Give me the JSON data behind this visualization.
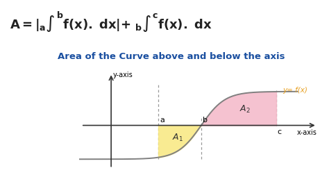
{
  "background_color": "#ffffff",
  "subtitle": "Area of the Curve above and below the axis",
  "subtitle_color": "#1a4fa0",
  "subtitle_fontsize": 9.5,
  "curve_color": "#808080",
  "area1_color": "#f9e87f",
  "area1_alpha": 0.85,
  "area2_color": "#f4b8c8",
  "area2_alpha": 0.85,
  "xaxis_label": "x-axis",
  "yaxis_label": "y-axis",
  "curve_label": "y= f(x)",
  "curve_label_color": "#e8a020",
  "dashed_color": "#999999",
  "axis_color": "#333333",
  "formula_color": "#222222",
  "label_color": "#000000",
  "a_x": 0.55,
  "b_x": 1.55,
  "c_x": 3.3,
  "yaxis_x": -0.55,
  "xlim_min": -1.3,
  "xlim_max": 4.3,
  "ylim_min": -1.5,
  "ylim_max": 1.8
}
